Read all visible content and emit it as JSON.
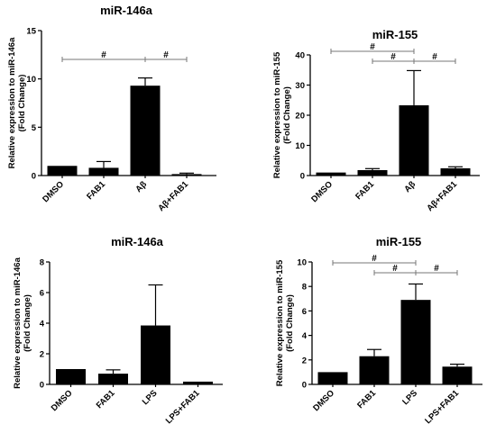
{
  "chart_data": [
    {
      "type": "bar",
      "title": "miR-146a",
      "ylabel": [
        "Relative expression to miR-146a",
        "(Fold Change)"
      ],
      "categories": [
        "DMSO",
        "FAB1",
        "Aβ",
        "Aβ+FAB1"
      ],
      "values": [
        1.0,
        0.8,
        9.3,
        0.15
      ],
      "errors": [
        0.0,
        0.65,
        0.8,
        0.1
      ],
      "ylim": [
        0,
        15
      ],
      "yticks": [
        0,
        5,
        10,
        15
      ],
      "ytick_labels": [
        "0",
        "5",
        "10",
        "15"
      ],
      "significance": [
        {
          "from": 0,
          "to": 2,
          "label": "#"
        },
        {
          "from": 2,
          "to": 3,
          "label": "#"
        }
      ]
    },
    {
      "type": "bar",
      "title": "miR-155",
      "ylabel": [
        "Relative expression to miR-155",
        "(Fold Change)"
      ],
      "categories": [
        "DMSO",
        "FAB1",
        "Aβ",
        "Aβ+FAB1"
      ],
      "values": [
        1.0,
        1.8,
        23.3,
        2.4
      ],
      "errors": [
        0.0,
        0.5,
        11.5,
        0.5
      ],
      "ylim": [
        0,
        40
      ],
      "yticks": [
        0,
        10,
        20,
        30,
        40
      ],
      "ytick_labels": [
        "0",
        "10",
        "20",
        "30",
        "40"
      ],
      "significance": [
        {
          "from": 0,
          "to": 2,
          "label": "#"
        },
        {
          "from": 1,
          "to": 2,
          "label": "#"
        },
        {
          "from": 2,
          "to": 3,
          "label": "#"
        }
      ]
    },
    {
      "type": "bar",
      "title": "miR-146a",
      "ylabel": [
        "Relative expression to miR-146a",
        "(Fold Change)"
      ],
      "categories": [
        "DMSO",
        "FAB1",
        "LPS",
        "LPS+FAB1"
      ],
      "values": [
        1.0,
        0.7,
        3.85,
        0.18
      ],
      "errors": [
        0.0,
        0.25,
        2.65,
        0.0
      ],
      "ylim": [
        0,
        8
      ],
      "yticks": [
        0,
        2,
        4,
        6,
        8
      ],
      "ytick_labels": [
        "0",
        "2",
        "4",
        "6",
        "8"
      ],
      "significance": []
    },
    {
      "type": "bar",
      "title": "miR-155",
      "ylabel": [
        "Relative expression to miR-155",
        "(Fold Change)"
      ],
      "categories": [
        "DMSO",
        "FAB1",
        "LPS",
        "LPS+FAB1"
      ],
      "values": [
        1.0,
        2.3,
        6.9,
        1.45
      ],
      "errors": [
        0.0,
        0.55,
        1.3,
        0.2
      ],
      "ylim": [
        0,
        10
      ],
      "yticks": [
        0,
        2,
        4,
        6,
        8,
        10
      ],
      "ytick_labels": [
        "0",
        "2",
        "4",
        "6",
        "8",
        "10"
      ],
      "significance": [
        {
          "from": 0,
          "to": 2,
          "label": "#"
        },
        {
          "from": 1,
          "to": 2,
          "label": "#"
        },
        {
          "from": 2,
          "to": 3,
          "label": "#"
        }
      ]
    }
  ]
}
